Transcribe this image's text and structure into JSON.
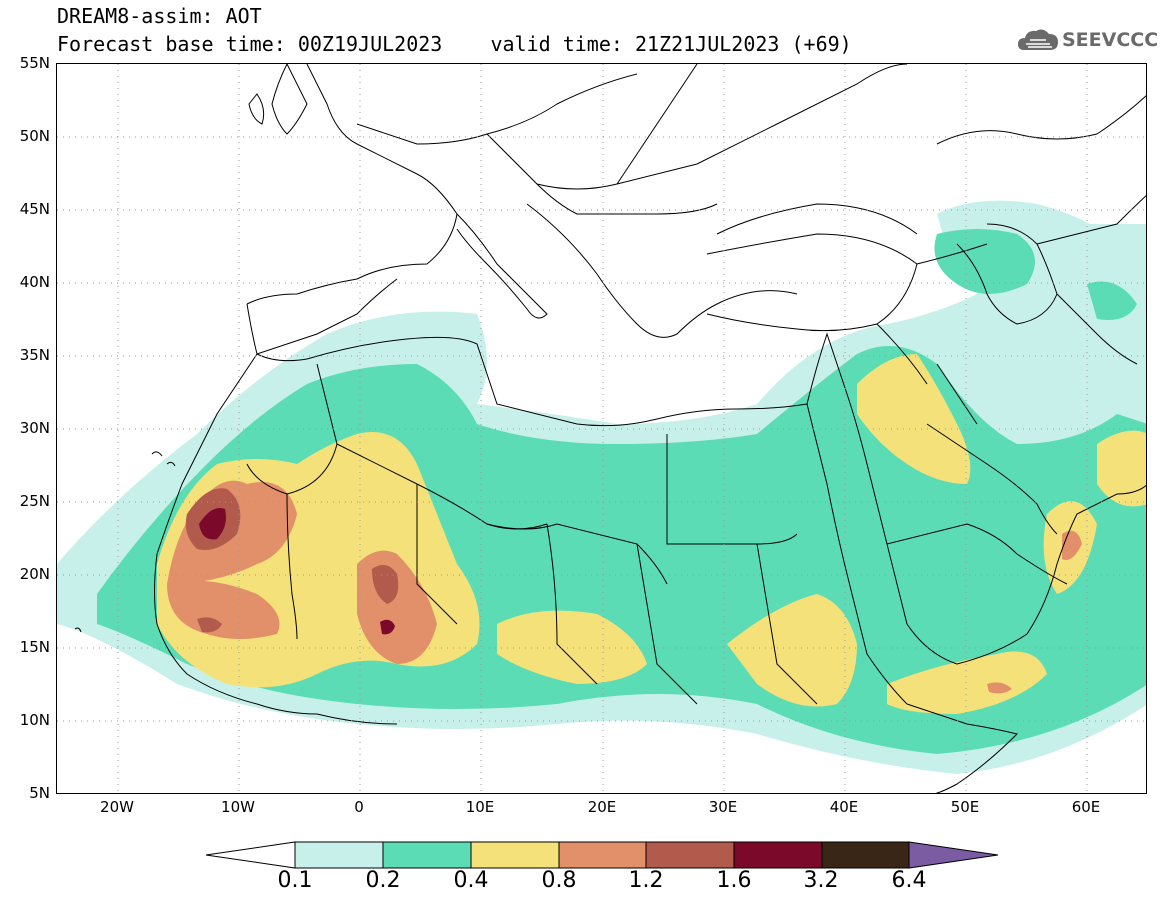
{
  "header": {
    "title": "DREAM8-assim: AOT",
    "subtitle": "Forecast base time: 00Z19JUL2023    valid time: 21Z21JUL2023 (+69)"
  },
  "logo": {
    "text": "SEEVCCC",
    "icon": "cloud-icon"
  },
  "map": {
    "lat_labels": [
      "55N",
      "50N",
      "45N",
      "40N",
      "35N",
      "30N",
      "25N",
      "20N",
      "15N",
      "10N",
      "5N"
    ],
    "lon_labels": [
      "20W",
      "10W",
      "0",
      "10E",
      "20E",
      "30E",
      "40E",
      "50E",
      "60E"
    ],
    "lon_range": [
      -25,
      65
    ],
    "lat_range": [
      5,
      55
    ]
  },
  "colorbar": {
    "labels": [
      "0.1",
      "0.2",
      "0.4",
      "0.8",
      "1.2",
      "1.6",
      "3.2",
      "6.4"
    ],
    "colors": {
      "under": "#ffffff",
      "c1": "#c7f0ea",
      "c2": "#5bdcb4",
      "c3": "#f5e179",
      "c4": "#e2906a",
      "c5": "#b25a4c",
      "c6": "#7b0a2a",
      "c7": "#3a2616",
      "over": "#7b5ca3"
    }
  }
}
